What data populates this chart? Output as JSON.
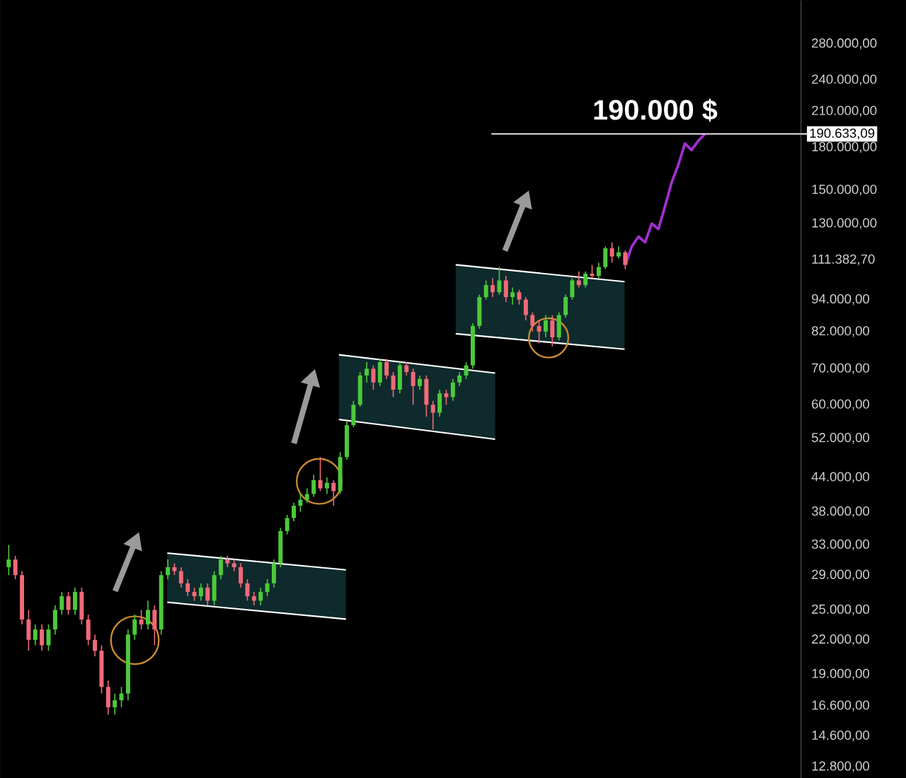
{
  "chart_data": {
    "type": "candlestick",
    "tick_labels": "y",
    "log": "y",
    "ylim": [
      12200,
      337000
    ],
    "yticks": [
      {
        "value": 280000,
        "label": "280.000,00"
      },
      {
        "value": 240000,
        "label": "240.000,00"
      },
      {
        "value": 210000,
        "label": "210.000,00"
      },
      {
        "value": 180000,
        "label": "180.000,00"
      },
      {
        "value": 150000,
        "label": "150.000,00"
      },
      {
        "value": 130000,
        "label": "130.000,00"
      },
      {
        "value": 111382.7,
        "label": "111.382,70"
      },
      {
        "value": 94000,
        "label": "94.000,00"
      },
      {
        "value": 82000,
        "label": "82.000,00"
      },
      {
        "value": 70000,
        "label": "70.000,00"
      },
      {
        "value": 60000,
        "label": "60.000,00"
      },
      {
        "value": 52000,
        "label": "52.000,00"
      },
      {
        "value": 44000,
        "label": "44.000,00"
      },
      {
        "value": 38000,
        "label": "38.000,00"
      },
      {
        "value": 33000,
        "label": "33.000,00"
      },
      {
        "value": 29000,
        "label": "29.000,00"
      },
      {
        "value": 25000,
        "label": "25.000,00"
      },
      {
        "value": 22000,
        "label": "22.000,00"
      },
      {
        "value": 19000,
        "label": "19.000,00"
      },
      {
        "value": 16600,
        "label": "16.600,00"
      },
      {
        "value": 14600,
        "label": "14.600,00"
      },
      {
        "value": 12800,
        "label": "12.800,00"
      }
    ],
    "ref_lines": [
      {
        "axis": "y",
        "value": 190633.09,
        "label": "190.633,09",
        "color": "#ffffff"
      }
    ],
    "annotations": [
      "190.000 $"
    ],
    "categories": [
      null,
      null,
      null,
      null,
      null,
      null,
      null,
      null,
      null,
      null,
      null,
      null,
      null,
      null,
      null,
      null,
      null,
      null,
      null,
      null,
      null,
      null,
      null,
      null,
      null,
      null,
      null,
      null,
      null,
      null,
      null,
      null,
      null,
      null,
      null,
      null,
      null,
      null,
      null,
      null,
      null,
      null,
      null,
      null,
      null,
      null,
      null,
      null,
      null,
      null,
      null,
      null,
      null,
      null,
      null,
      null,
      null,
      null,
      null,
      null,
      null,
      null,
      null,
      null,
      null,
      null,
      null,
      null,
      null,
      null,
      null,
      null,
      null,
      null,
      null,
      null,
      null,
      null,
      null,
      null,
      null,
      null,
      null,
      null,
      null,
      null,
      null,
      null,
      null,
      null,
      null,
      null,
      null,
      null,
      null,
      null,
      null,
      null,
      null,
      null,
      null,
      null,
      null,
      null,
      null,
      null,
      null,
      null,
      null,
      null,
      null,
      null,
      null,
      null,
      null,
      null,
      null,
      null,
      null,
      null
    ],
    "ohlc": [
      [
        30000,
        33000,
        29000,
        31000
      ],
      [
        31000,
        31500,
        28500,
        29000
      ],
      [
        29000,
        29500,
        23500,
        24000
      ],
      [
        24000,
        25000,
        21000,
        22000
      ],
      [
        22000,
        23500,
        21500,
        23000
      ],
      [
        23000,
        23500,
        21000,
        21500
      ],
      [
        21500,
        23500,
        21000,
        23000
      ],
      [
        23000,
        25500,
        22500,
        25000
      ],
      [
        25000,
        27000,
        24500,
        26500
      ],
      [
        26500,
        27000,
        24500,
        25000
      ],
      [
        25000,
        27500,
        24500,
        27000
      ],
      [
        27000,
        27500,
        23500,
        24000
      ],
      [
        24000,
        24500,
        21500,
        22000
      ],
      [
        22000,
        22500,
        20500,
        21000
      ],
      [
        21000,
        21500,
        17500,
        18000
      ],
      [
        18000,
        18500,
        16000,
        16500
      ],
      [
        16500,
        17500,
        16000,
        17000
      ],
      [
        17000,
        18000,
        16500,
        17500
      ],
      [
        17500,
        23000,
        17000,
        22500
      ],
      [
        22500,
        24500,
        22000,
        24000
      ],
      [
        24000,
        25000,
        23000,
        23500
      ],
      [
        23500,
        26000,
        23000,
        25000
      ],
      [
        25000,
        25500,
        21500,
        23000
      ],
      [
        23000,
        29500,
        22500,
        29000
      ],
      [
        29000,
        31000,
        28500,
        30000
      ],
      [
        30000,
        30500,
        29000,
        29500
      ],
      [
        29500,
        30000,
        27500,
        28000
      ],
      [
        28000,
        28500,
        26500,
        27000
      ],
      [
        27000,
        27500,
        26000,
        26500
      ],
      [
        26500,
        28000,
        26000,
        27500
      ],
      [
        27500,
        28000,
        25500,
        26000
      ],
      [
        26000,
        29500,
        25500,
        29000
      ],
      [
        29000,
        31500,
        28500,
        31000
      ],
      [
        31000,
        31500,
        30000,
        30500
      ],
      [
        30500,
        31000,
        29500,
        30000
      ],
      [
        30000,
        30500,
        27500,
        28000
      ],
      [
        28000,
        28500,
        26000,
        26500
      ],
      [
        26500,
        27000,
        25500,
        26000
      ],
      [
        26000,
        27500,
        25500,
        27000
      ],
      [
        27000,
        28500,
        26500,
        28000
      ],
      [
        28000,
        31000,
        27500,
        30500
      ],
      [
        30500,
        35500,
        30000,
        35000
      ],
      [
        35000,
        37500,
        34500,
        37000
      ],
      [
        37000,
        39500,
        36500,
        39000
      ],
      [
        39000,
        41000,
        38000,
        40000
      ],
      [
        40000,
        42000,
        39500,
        41000
      ],
      [
        41000,
        44500,
        40500,
        43500
      ],
      [
        43500,
        48000,
        41500,
        42000
      ],
      [
        42000,
        44000,
        41000,
        43000
      ],
      [
        43000,
        43500,
        39000,
        41500
      ],
      [
        41500,
        49000,
        41000,
        48000
      ],
      [
        48000,
        56000,
        47500,
        55000
      ],
      [
        55000,
        61000,
        54500,
        60000
      ],
      [
        60000,
        69000,
        59500,
        68000
      ],
      [
        68000,
        72000,
        66000,
        70000
      ],
      [
        70000,
        71000,
        64000,
        66000
      ],
      [
        66000,
        73000,
        65000,
        72000
      ],
      [
        72000,
        73000,
        67000,
        68000
      ],
      [
        68000,
        69000,
        62000,
        64000
      ],
      [
        64000,
        72000,
        63000,
        71000
      ],
      [
        71000,
        72000,
        68000,
        69000
      ],
      [
        69000,
        70000,
        60000,
        65000
      ],
      [
        65000,
        68000,
        64000,
        67000
      ],
      [
        67000,
        68000,
        57000,
        60000
      ],
      [
        60000,
        61000,
        54000,
        58000
      ],
      [
        58000,
        64000,
        57000,
        63000
      ],
      [
        63000,
        64000,
        60000,
        62000
      ],
      [
        62000,
        67000,
        61000,
        66000
      ],
      [
        66000,
        69000,
        65000,
        68000
      ],
      [
        68000,
        72000,
        67000,
        71000
      ],
      [
        71000,
        85000,
        70000,
        84000
      ],
      [
        84000,
        96000,
        83000,
        95000
      ],
      [
        95000,
        102000,
        94000,
        100000
      ],
      [
        100000,
        103000,
        95000,
        97000
      ],
      [
        97000,
        108000,
        96000,
        102000
      ],
      [
        102000,
        104000,
        93000,
        95000
      ],
      [
        95000,
        99000,
        92000,
        97000
      ],
      [
        97000,
        98000,
        92000,
        94000
      ],
      [
        94000,
        95000,
        86000,
        88000
      ],
      [
        88000,
        89000,
        82000,
        84000
      ],
      [
        84000,
        86000,
        78000,
        82000
      ],
      [
        82000,
        88000,
        80000,
        86000
      ],
      [
        86000,
        88000,
        77000,
        80000
      ],
      [
        80000,
        89000,
        79000,
        88000
      ],
      [
        88000,
        96000,
        87000,
        95000
      ],
      [
        95000,
        103000,
        94000,
        102000
      ],
      [
        102000,
        106000,
        99000,
        100000
      ],
      [
        100000,
        106000,
        99000,
        105000
      ],
      [
        105000,
        109000,
        103000,
        104000
      ],
      [
        104000,
        110000,
        103000,
        108000
      ],
      [
        108000,
        118000,
        107000,
        117000
      ],
      [
        117000,
        120000,
        110000,
        113000
      ],
      [
        113000,
        118000,
        112000,
        115000
      ],
      [
        115000,
        116000,
        107000,
        109000
      ],
      null,
      null,
      null,
      null,
      null,
      null,
      null,
      null,
      null,
      null,
      null,
      null,
      null,
      null,
      null,
      null,
      null,
      null,
      null,
      null,
      null,
      null,
      null,
      null,
      null,
      null
    ],
    "series": [
      {
        "type": "line",
        "color": "#a030d0",
        "values": [
          null,
          null,
          null,
          null,
          null,
          null,
          null,
          null,
          null,
          null,
          null,
          null,
          null,
          null,
          null,
          null,
          null,
          null,
          null,
          null,
          null,
          null,
          null,
          null,
          null,
          null,
          null,
          null,
          null,
          null,
          null,
          null,
          null,
          null,
          null,
          null,
          null,
          null,
          null,
          null,
          null,
          null,
          null,
          null,
          null,
          null,
          null,
          null,
          null,
          null,
          null,
          null,
          null,
          null,
          null,
          null,
          null,
          null,
          null,
          null,
          null,
          null,
          null,
          null,
          null,
          null,
          null,
          null,
          null,
          null,
          null,
          null,
          null,
          null,
          null,
          null,
          null,
          null,
          null,
          null,
          null,
          null,
          null,
          null,
          null,
          null,
          null,
          null,
          null,
          null,
          null,
          null,
          null,
          109000,
          118000,
          123000,
          120000,
          130000,
          127000,
          140000,
          155000,
          167000,
          183000,
          178000,
          185000,
          190600,
          null,
          null,
          null,
          null,
          null,
          null,
          null,
          null,
          null,
          null,
          null,
          null,
          null,
          null
        ]
      }
    ]
  }
}
